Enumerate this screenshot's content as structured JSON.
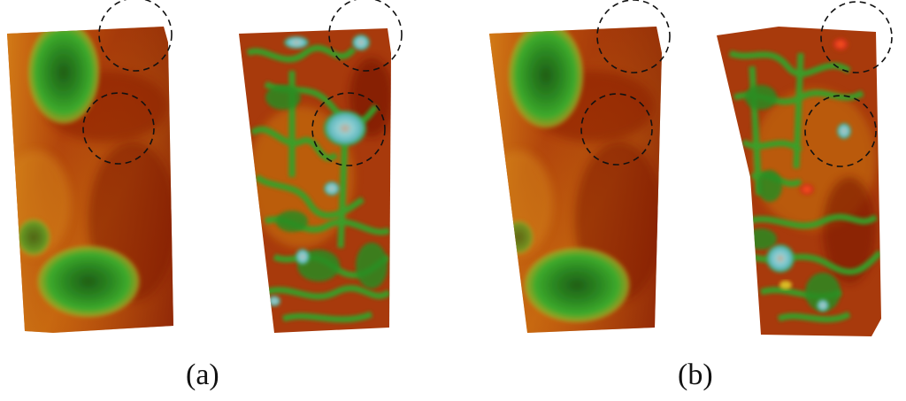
{
  "figure": {
    "panels": [
      {
        "id": "a",
        "label": "(a)"
      },
      {
        "id": "b",
        "label": "(b)"
      }
    ],
    "colors": {
      "background": "#ffffff",
      "dark_red": "#8a1d05",
      "mid_red": "#a83a0c",
      "orange": "#d2780e",
      "yellow": "#dcaa22",
      "green": "#2e9a24",
      "dark_green": "#1d5a14",
      "cyan": "#7ec9cf",
      "highlight_red": "#e0421a",
      "circle_stroke": "#111111"
    },
    "markers": "dashed-circles"
  }
}
